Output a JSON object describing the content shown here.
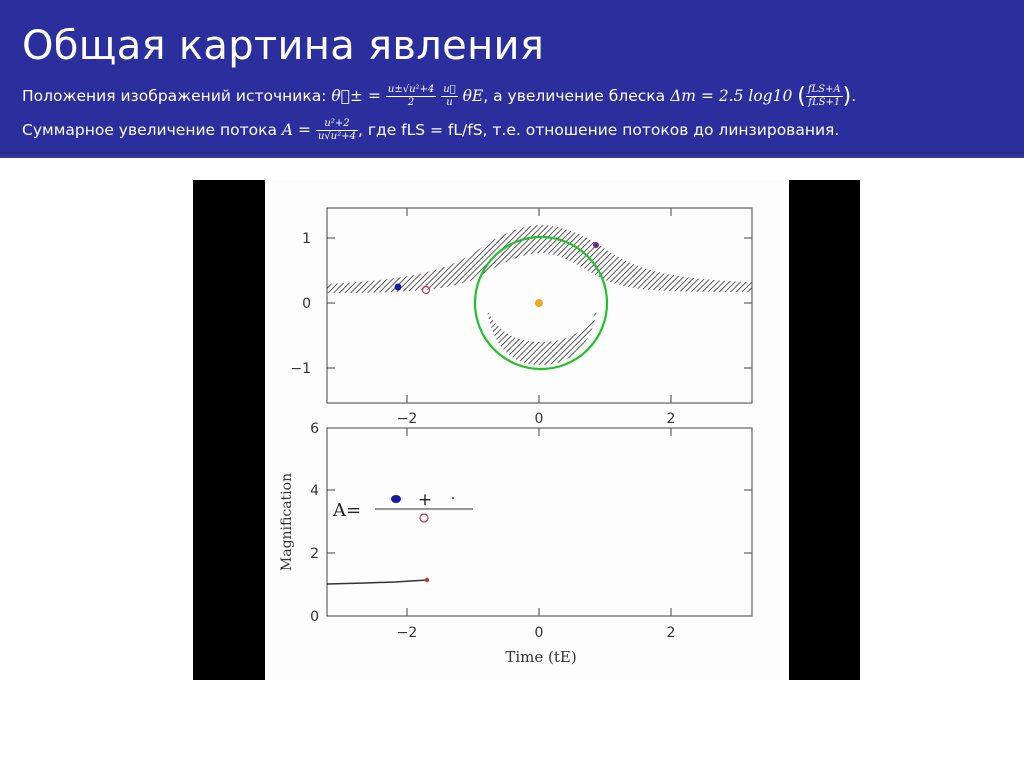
{
  "header": {
    "title": "Общая картина явления",
    "line1": {
      "prefix": "Положения изображений источника:",
      "theta": "θ⃗±",
      "eq": "=",
      "frac1_num": "u±√u²+4",
      "frac1_den": "2",
      "frac2_num": "u⃗",
      "frac2_den": "u",
      "thetaE": "θE",
      "middle": ", а увеличение блеска",
      "dm": "Δm = 2.5 log10",
      "frac3_num": "fLS+A",
      "frac3_den": "fLS+1",
      "end": "."
    },
    "line2": {
      "prefix": "Суммарное увеличение потока",
      "A": "A =",
      "frac_num": "u²+2",
      "frac_den": "u√u²+4",
      "suffix": ", где fLS = fL/fS, т.е. отношение потоков до линзирования."
    }
  },
  "figure": {
    "top_panel": {
      "yticks": [
        "1",
        "0",
        "−1"
      ],
      "xticks": [
        "−2",
        "0",
        "2"
      ]
    },
    "bottom_panel": {
      "yticks": [
        "6",
        "4",
        "2",
        "0"
      ],
      "xticks": [
        "−2",
        "0",
        "2"
      ],
      "ylabel": "Magnification",
      "xlabel": "Time (tE)",
      "formula_label": "A=",
      "formula_plus": "+",
      "formula_dot": "·"
    },
    "colors": {
      "einstein_ring": "#22c22a",
      "lens_star": "#f5a623",
      "image_plus": "#1a1aa0",
      "image_minus": "#c0394b",
      "hatch": "#333333",
      "curve": "#333333",
      "curve_end": "#c0392b"
    }
  }
}
